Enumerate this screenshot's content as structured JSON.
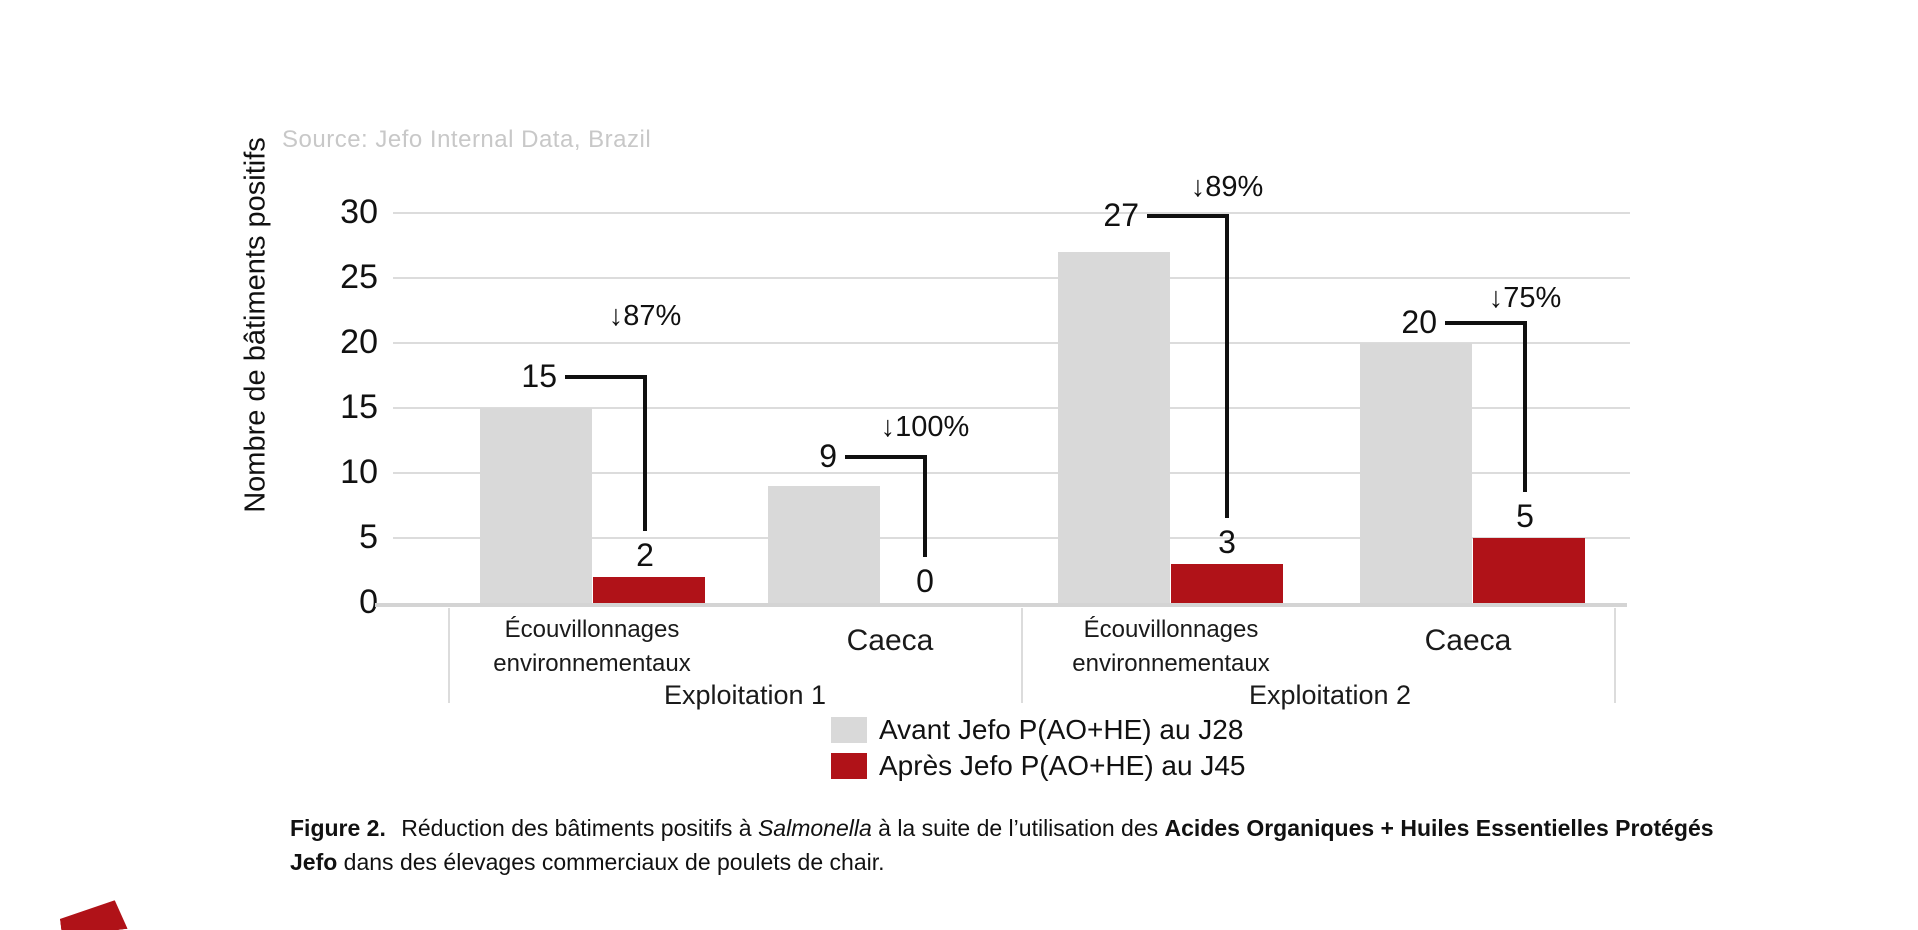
{
  "source_note": "Source: Jefo Internal Data, Brazil",
  "chart_data": {
    "type": "bar",
    "title": "",
    "xlabel": "",
    "ylabel": "Nombre de bâtiments positifs",
    "ylim": [
      0,
      30
    ],
    "yticks": [
      0,
      5,
      10,
      15,
      20,
      25,
      30
    ],
    "grid": true,
    "legend_position": "bottom-center",
    "group_labels": [
      "Exploitation 1",
      "Exploitation 2"
    ],
    "categories": [
      "Écouvillonnages environnementaux",
      "Caeca",
      "Écouvillonnages environnementaux",
      "Caeca"
    ],
    "series": [
      {
        "name": "Avant Jefo P(AO+HE) au J28",
        "color": "#d9d9d9",
        "values": [
          15,
          9,
          27,
          20
        ]
      },
      {
        "name": "Après Jefo P(AO+HE) au J45",
        "color": "#b01218",
        "values": [
          2,
          0,
          3,
          5
        ]
      }
    ],
    "annotations": [
      {
        "avant": "15",
        "apres": "2",
        "reduction": "↓87%"
      },
      {
        "avant": "9",
        "apres": "0",
        "reduction": "↓100%"
      },
      {
        "avant": "27",
        "apres": "3",
        "reduction": "↓89%"
      },
      {
        "avant": "20",
        "apres": "5",
        "reduction": "↓75%"
      }
    ]
  },
  "caption": {
    "label": "Figure 2.",
    "segments": [
      {
        "text": " Réduction des bâtiments positifs à ",
        "style": "normal"
      },
      {
        "text": "Salmonella",
        "style": "italic"
      },
      {
        "text": " à la suite de l’utilisation des ",
        "style": "normal"
      },
      {
        "text": "Acides Organiques + Huiles Essentielles Protégés",
        "style": "bold",
        "break_after": true
      },
      {
        "text": "Jefo",
        "style": "bold"
      },
      {
        "text": " dans des élevages commerciaux de poulets de chair.",
        "style": "normal"
      }
    ]
  },
  "accent_color": "#b01218"
}
